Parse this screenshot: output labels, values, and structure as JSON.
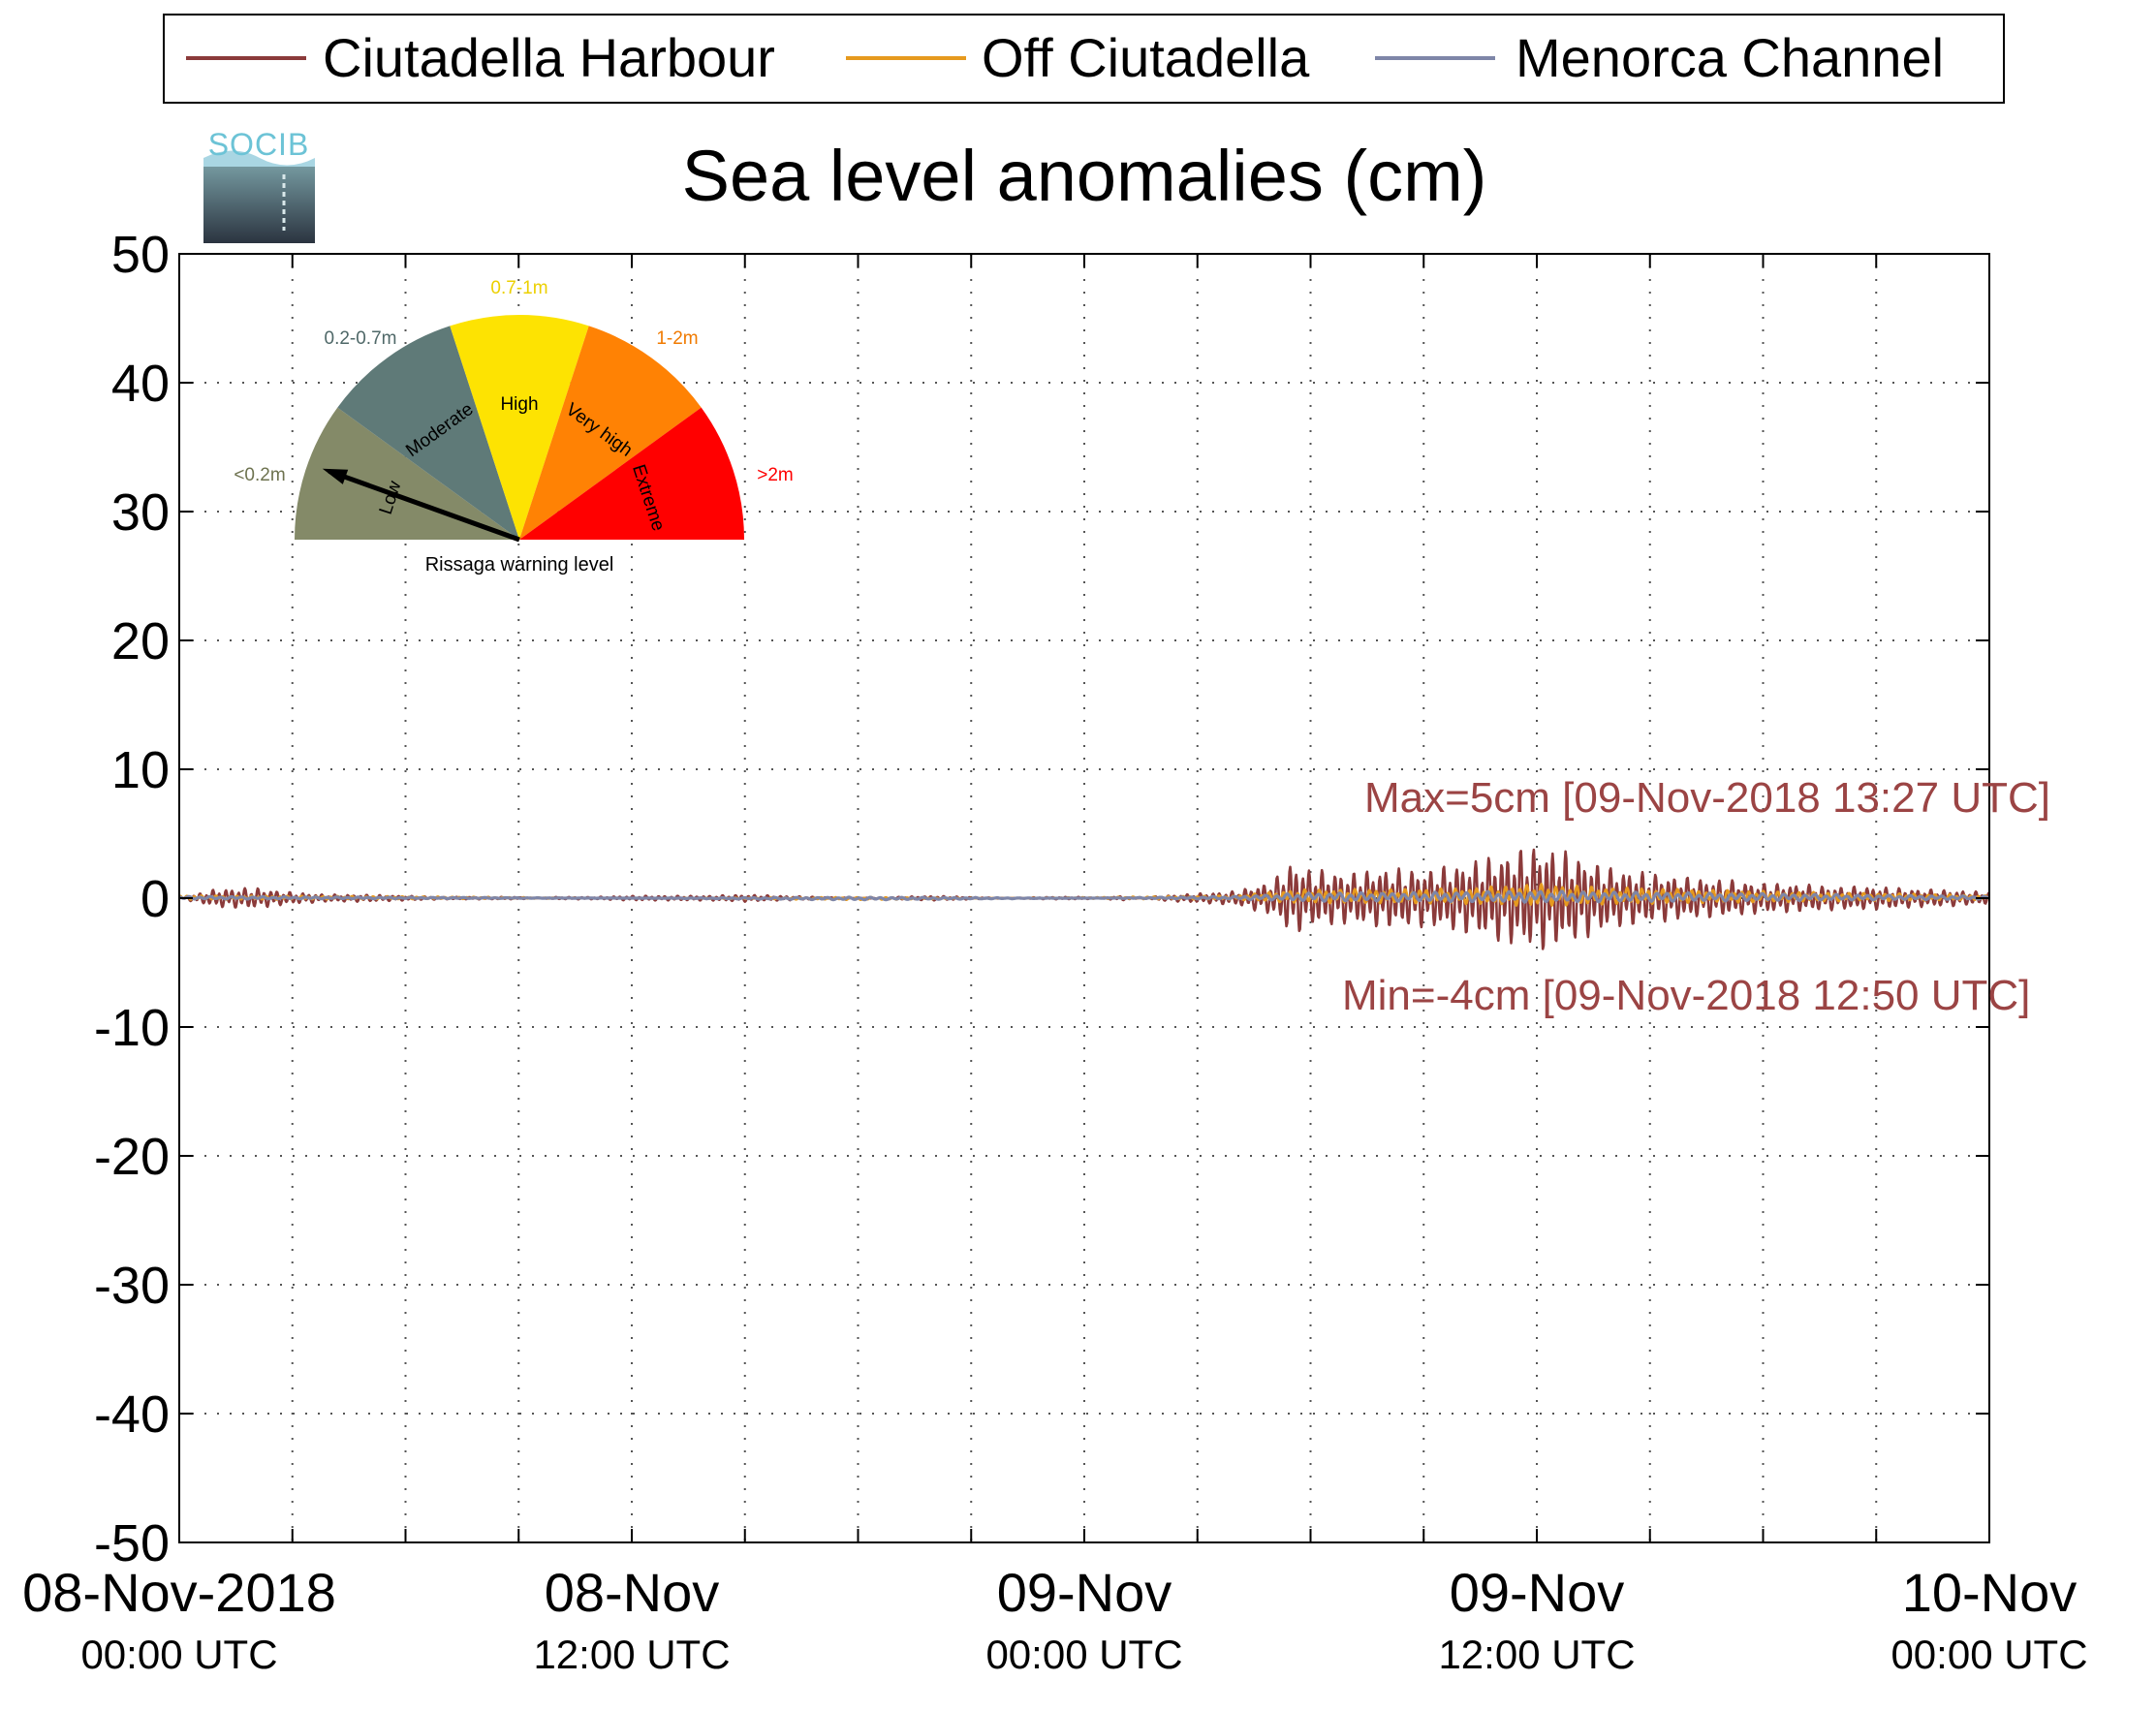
{
  "chart_data": {
    "type": "line",
    "title": "Sea level anomalies (cm)",
    "ylim": [
      -50,
      50
    ],
    "yticks": [
      50,
      40,
      30,
      20,
      10,
      0,
      -10,
      -20,
      -30,
      -40,
      -50
    ],
    "y_tick_labels": [
      "50",
      "40",
      "30",
      "20",
      "10",
      "0",
      "-10",
      "-20",
      "-30",
      "-40",
      "-50"
    ],
    "x_range_hours": [
      0,
      48
    ],
    "x_ticks": [
      {
        "date": "08-Nov-2018",
        "time": "00:00 UTC",
        "hours": 0
      },
      {
        "date": "08-Nov",
        "time": "12:00 UTC",
        "hours": 12
      },
      {
        "date": "09-Nov",
        "time": "00:00 UTC",
        "hours": 24
      },
      {
        "date": "09-Nov",
        "time": "12:00 UTC",
        "hours": 36
      },
      {
        "date": "10-Nov",
        "time": "00:00 UTC",
        "hours": 48
      }
    ],
    "minor_x_ticks_hours": [
      3,
      6,
      9,
      15,
      18,
      21,
      27,
      30,
      33,
      39,
      42,
      45
    ],
    "grid": true,
    "legend": "top",
    "series": [
      {
        "name": "Ciutadella Harbour",
        "color": "#8b3a3a",
        "hours": [
          0,
          1,
          2,
          3,
          4,
          5,
          6,
          7,
          8,
          9,
          10,
          11,
          12,
          13,
          14,
          15,
          16,
          17,
          18,
          19,
          20,
          21,
          22,
          23,
          24,
          25,
          26,
          27,
          28,
          29,
          29.5,
          30,
          30.5,
          31,
          32,
          33,
          34,
          35,
          35.5,
          36,
          36.5,
          37,
          37.5,
          38,
          39,
          40,
          41,
          42,
          43,
          44,
          45,
          46,
          47,
          48
        ],
        "values": [
          0.0,
          0.8,
          0.9,
          0.5,
          0.3,
          0.3,
          0.2,
          0.1,
          0.1,
          0.1,
          -0.1,
          -0.1,
          -0.2,
          -0.2,
          -0.2,
          -0.3,
          -0.2,
          -0.1,
          0.0,
          0.1,
          0.2,
          0.1,
          0.0,
          0.1,
          0.1,
          -0.2,
          0.2,
          0.4,
          0.6,
          1.5,
          3.2,
          2.5,
          2.4,
          2.2,
          2.6,
          2.5,
          3.0,
          3.8,
          4.2,
          4.6,
          4.3,
          3.8,
          3.2,
          2.6,
          2.2,
          1.8,
          1.6,
          1.3,
          1.2,
          1.0,
          1.0,
          0.8,
          0.7,
          0.5
        ],
        "note_values_are_envelope_cm": true
      },
      {
        "name": "Off Ciutadella",
        "color": "#e69a1e",
        "hours": [
          0,
          6,
          12,
          18,
          24,
          28,
          29.5,
          30,
          32,
          34,
          36,
          38,
          40,
          42,
          44,
          46,
          48
        ],
        "values": [
          0.3,
          0.2,
          0.0,
          -0.2,
          0.1,
          0.3,
          0.9,
          1.0,
          1.0,
          1.1,
          1.6,
          1.2,
          1.0,
          0.8,
          0.6,
          0.5,
          0.3
        ],
        "note_values_are_envelope_cm": true
      },
      {
        "name": "Menorca Channel",
        "color": "#7e86a8",
        "hours": [
          0,
          6,
          12,
          18,
          24,
          28,
          29.5,
          30,
          32,
          34,
          36,
          38,
          40,
          42,
          44,
          46,
          48
        ],
        "values": [
          0.2,
          0.1,
          0.0,
          -0.2,
          0.0,
          0.2,
          0.5,
          0.6,
          0.6,
          0.7,
          0.8,
          0.7,
          0.6,
          0.5,
          0.4,
          0.3,
          0.2
        ],
        "note_values_are_envelope_cm": true
      }
    ],
    "annotations": {
      "max_text": "Max=5cm [09-Nov-2018 13:27 UTC]",
      "min_text": "Min=-4cm [09-Nov-2018 12:50 UTC]",
      "color": "#9b4444"
    }
  },
  "logo": {
    "text": "SOCIB"
  },
  "gauge": {
    "caption": "Rissaga warning level",
    "current_level": "Low",
    "segments": [
      {
        "name": "Low",
        "range": "<0.2m",
        "color": "#848a68",
        "label_color": "#6e7350"
      },
      {
        "name": "Moderate",
        "range": "0.2-0.7m",
        "color": "#5f7a78",
        "label_color": "#4f6868"
      },
      {
        "name": "High",
        "range": "0.7-1m",
        "color": "#fde302",
        "label_color": "#ecd000"
      },
      {
        "name": "Very high",
        "range": "1-2m",
        "color": "#ff8204",
        "label_color": "#f07a00"
      },
      {
        "name": "Extreme",
        "range": ">2m",
        "color": "#ff0000",
        "label_color": "#ff0000"
      }
    ]
  }
}
